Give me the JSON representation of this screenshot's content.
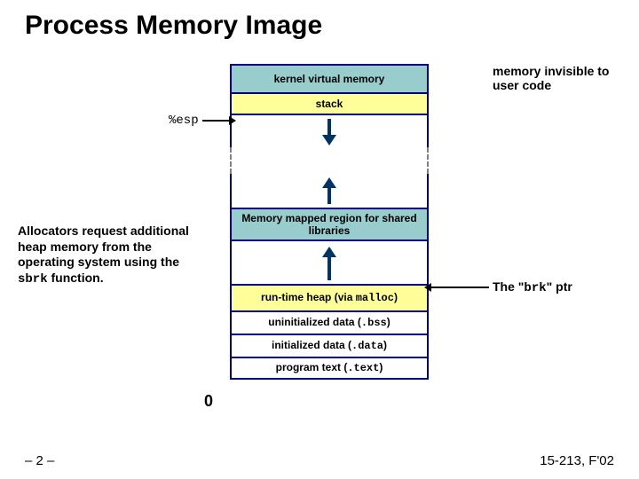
{
  "title": "Process Memory Image",
  "segments": {
    "kvm": "kernel virtual memory",
    "stack": "stack",
    "mmap": "Memory mapped region for shared libraries",
    "heap_pre": "run-time heap (via ",
    "heap_mono": "malloc",
    "heap_post": ")",
    "bss_pre": "uninitialized data (",
    "bss_mono": ".bss",
    "bss_post": ")",
    "data_pre": "initialized data (",
    "data_mono": ".data",
    "data_post": ")",
    "text_pre": "program text (",
    "text_mono": ".text",
    "text_post": ")"
  },
  "annotations": {
    "kvm_note": "memory invisible to user code",
    "brk_pre": "The \"",
    "brk_mono": "brk",
    "brk_post": "\" ptr",
    "esp": "%esp",
    "left_pre": "Allocators request additional heap memory from the operating system using the ",
    "left_mono": "sbrk",
    "left_post": " function.",
    "zero": "0"
  },
  "footer": {
    "left": "– 2 –",
    "right": "15-213, F'02"
  },
  "colors": {
    "border": "#000080",
    "fill_teal": "#99cccc",
    "fill_yellow": "#ffff99",
    "arrow": "#003366",
    "bg": "#ffffff"
  }
}
